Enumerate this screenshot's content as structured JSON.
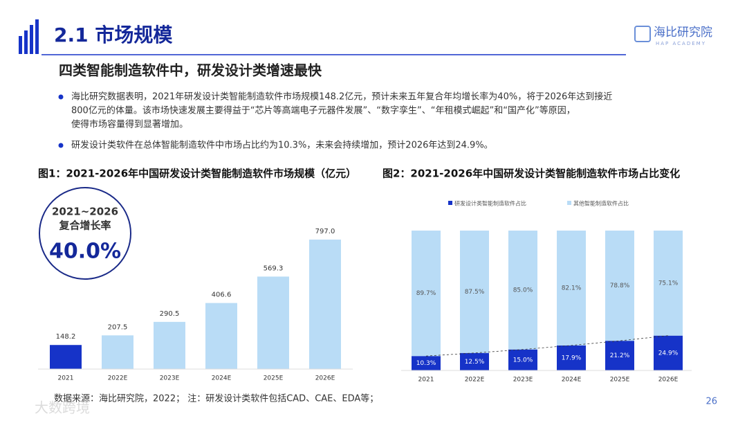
{
  "header": {
    "title": "2.1 市场规模",
    "logo": "海比研究院",
    "logo_sub": "HAP ACADEMY"
  },
  "subtitle": "四类智能制造软件中，研发设计类增速最快",
  "bullets": [
    [
      "海比研究数据表明，2021年研发设计类智能制造软件市场规模148.2亿元，预计未来五年复合年均增长率为40%，将于2026年达到接近",
      "800亿元的体量。该市场快速发展主要得益于“芯片等高端电子元器件发展”、“数字孪生”、“年租模式崛起”和“国产化”等原因，",
      "使得市场容量得到显著增加。"
    ],
    [
      "研发设计类软件在总体智能制造软件中市场占比约为10.3%，未来会持续增加，预计2026年达到24.9%。"
    ]
  ],
  "badge": {
    "years": "2021~2026",
    "label": "复合增长率",
    "value": "40.0%"
  },
  "chart_data": [
    {
      "type": "bar",
      "title": "图1：2021-2026年中国研发设计类智能制造软件市场规模（亿元）",
      "categories": [
        "2021",
        "2022E",
        "2023E",
        "2024E",
        "2025E",
        "2026E"
      ],
      "values": [
        148.2,
        207.5,
        290.5,
        406.6,
        569.3,
        797.0
      ],
      "value_labels": [
        "148.2",
        "207.5",
        "290.5",
        "406.6",
        "569.3",
        "797.0"
      ],
      "colors": [
        "#1633c8",
        "#b9dcf6",
        "#b9dcf6",
        "#b9dcf6",
        "#b9dcf6",
        "#b9dcf6"
      ]
    },
    {
      "type": "stacked_bar",
      "title": "图2：2021-2026年中国研发设计类智能制造软件市场占比变化",
      "categories": [
        "2021",
        "2022E",
        "2023E",
        "2024E",
        "2025E",
        "2026E"
      ],
      "series": [
        {
          "name": "研发设计类智能制造软件占比",
          "color": "#1633c8",
          "values": [
            10.3,
            12.5,
            15.0,
            17.9,
            21.2,
            24.9
          ],
          "value_labels": [
            "10.3%",
            "12.5%",
            "15.0%",
            "17.9%",
            "21.2%",
            "24.9%"
          ]
        },
        {
          "name": "其他智能制造软件占比",
          "color": "#b9dcf6",
          "values": [
            89.7,
            87.5,
            85.0,
            82.1,
            78.8,
            75.1
          ],
          "value_labels": [
            "89.7%",
            "87.5%",
            "85.0%",
            "82.1%",
            "78.8%",
            "75.1%"
          ]
        }
      ]
    }
  ],
  "footer": {
    "source": "数据来源：海比研究院，2022；    注：研发设计类软件包括CAD、CAE、EDA等；",
    "page": "26",
    "watermark": "大数跨境"
  }
}
